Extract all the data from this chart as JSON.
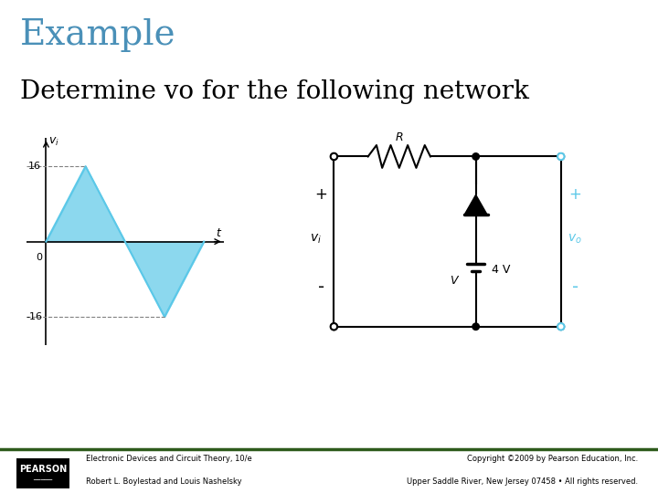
{
  "title": "Example",
  "subtitle": "Determine vo for the following network",
  "title_color": "#4a90b8",
  "title_fontsize": 28,
  "subtitle_fontsize": 20,
  "bg_color": "#ffffff",
  "footer_bg": "#ffffff",
  "footer_line_color": "#2d5a1b",
  "footer_text_left1": "Electronic Devices and Circuit Theory, 10/e",
  "footer_text_left2": "Robert L. Boylestad and Louis Nashelsky",
  "footer_text_right1": "Copyright ©2009 by Pearson Education, Inc.",
  "footer_text_right2": "Upper Saddle River, New Jersey 07458 • All rights reserved.",
  "waveform_color": "#5bc8e8",
  "waveform_peak": 16,
  "circuit_color": "#000000",
  "cyan_color": "#5bc8e8"
}
